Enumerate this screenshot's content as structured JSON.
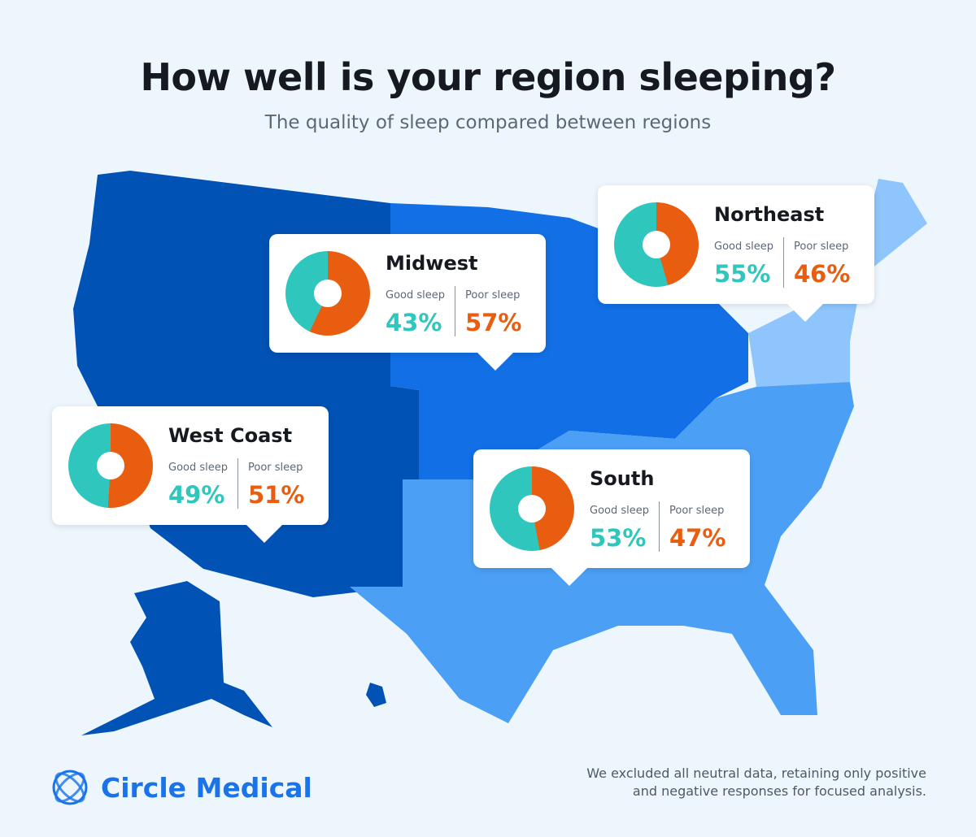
{
  "header": {
    "title": "How well is your region sleeping?",
    "subtitle": "The quality of sleep compared between regions"
  },
  "colors": {
    "good": "#2ec6bd",
    "poor": "#e85d0f",
    "west": "#0052b4",
    "midwest": "#126fe6",
    "south": "#4b9ff5",
    "northeast": "#8ec5fc"
  },
  "labels": {
    "good": "Good sleep",
    "poor": "Poor sleep"
  },
  "regions": [
    {
      "name": "Midwest",
      "good": 43,
      "poor": 57,
      "good_text": "43%",
      "poor_text": "57%"
    },
    {
      "name": "Northeast",
      "good": 55,
      "poor": 46,
      "good_text": "55%",
      "poor_text": "46%"
    },
    {
      "name": "West Coast",
      "good": 49,
      "poor": 51,
      "good_text": "49%",
      "poor_text": "51%"
    },
    {
      "name": "South",
      "good": 53,
      "poor": 47,
      "good_text": "53%",
      "poor_text": "47%"
    }
  ],
  "footer": {
    "brand": "Circle Medical",
    "note_line1": "We excluded all neutral data, retaining only positive",
    "note_line2": "and negative responses for focused analysis."
  }
}
